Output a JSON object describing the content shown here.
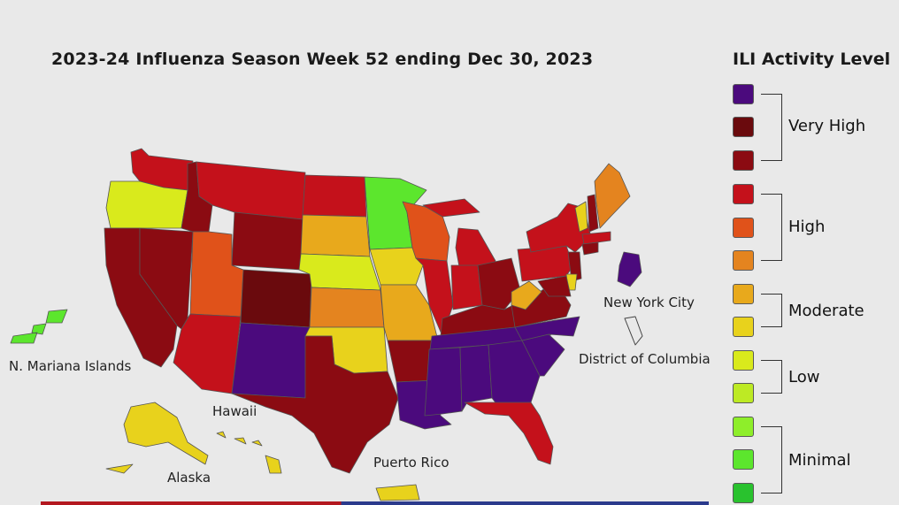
{
  "title": "2023-24 Influenza Season Week 52 ending Dec 30, 2023",
  "legend": {
    "title": "ILI Activity Level",
    "swatches": [
      "#4b0a7d",
      "#6a0a0d",
      "#8b0b12",
      "#c4111b",
      "#e0521a",
      "#e4841f",
      "#e8a91c",
      "#e8d21c",
      "#d9ea1c",
      "#bdea24",
      "#8eee2a",
      "#5ce62d",
      "#29c22e"
    ],
    "groups": [
      {
        "label": "Very High"
      },
      {
        "label": "High"
      },
      {
        "label": "Moderate"
      },
      {
        "label": "Low"
      },
      {
        "label": "Minimal"
      }
    ]
  },
  "labels": {
    "n_mariana": "N. Mariana Islands",
    "hawaii": "Hawaii",
    "alaska": "Alaska",
    "puerto_rico": "Puerto Rico",
    "nyc": "New York City",
    "dc": "District of Columbia"
  },
  "colors": {
    "purple": "#4b0a7d",
    "dark_maroon": "#6a0a0d",
    "maroon": "#8b0b12",
    "red": "#c4111b",
    "dark_orange": "#e0521a",
    "orange": "#e4841f",
    "amber": "#e8a91c",
    "yellow": "#e8d21c",
    "yellow_green": "#d9ea1c",
    "lime": "#8eee2a",
    "green": "#5ce62d",
    "border": "#555555",
    "background": "#e9e9e9"
  },
  "states": {
    "WA": "red",
    "OR": "yellow_green",
    "CA": "maroon",
    "NV": "maroon",
    "ID": "maroon",
    "MT": "red",
    "WY": "maroon",
    "UT": "dark_orange",
    "CO": "dark_maroon",
    "AZ": "red",
    "NM": "purple",
    "ND": "red",
    "SD": "amber",
    "NE": "yellow_green",
    "KS": "orange",
    "OK": "yellow",
    "TX": "maroon",
    "MN": "green",
    "IA": "yellow",
    "MO": "amber",
    "AR": "maroon",
    "LA": "purple",
    "WI": "dark_orange",
    "IL": "red",
    "MI": "red",
    "IN": "red",
    "OH": "maroon",
    "KY": "maroon",
    "TN": "purple",
    "MS": "purple",
    "AL": "purple",
    "GA": "purple",
    "FL": "red",
    "SC": "purple",
    "NC": "purple",
    "VA": "maroon",
    "WV": "amber",
    "PA": "red",
    "NY": "red",
    "VT": "yellow",
    "NH": "maroon",
    "ME": "orange",
    "MA": "red",
    "CT": "maroon",
    "NJ": "maroon",
    "DE": "yellow",
    "MD": "maroon",
    "AK": "yellow",
    "HI": "yellow",
    "PR": "yellow",
    "NMI": "green",
    "NYC": "purple",
    "DC": "none"
  }
}
